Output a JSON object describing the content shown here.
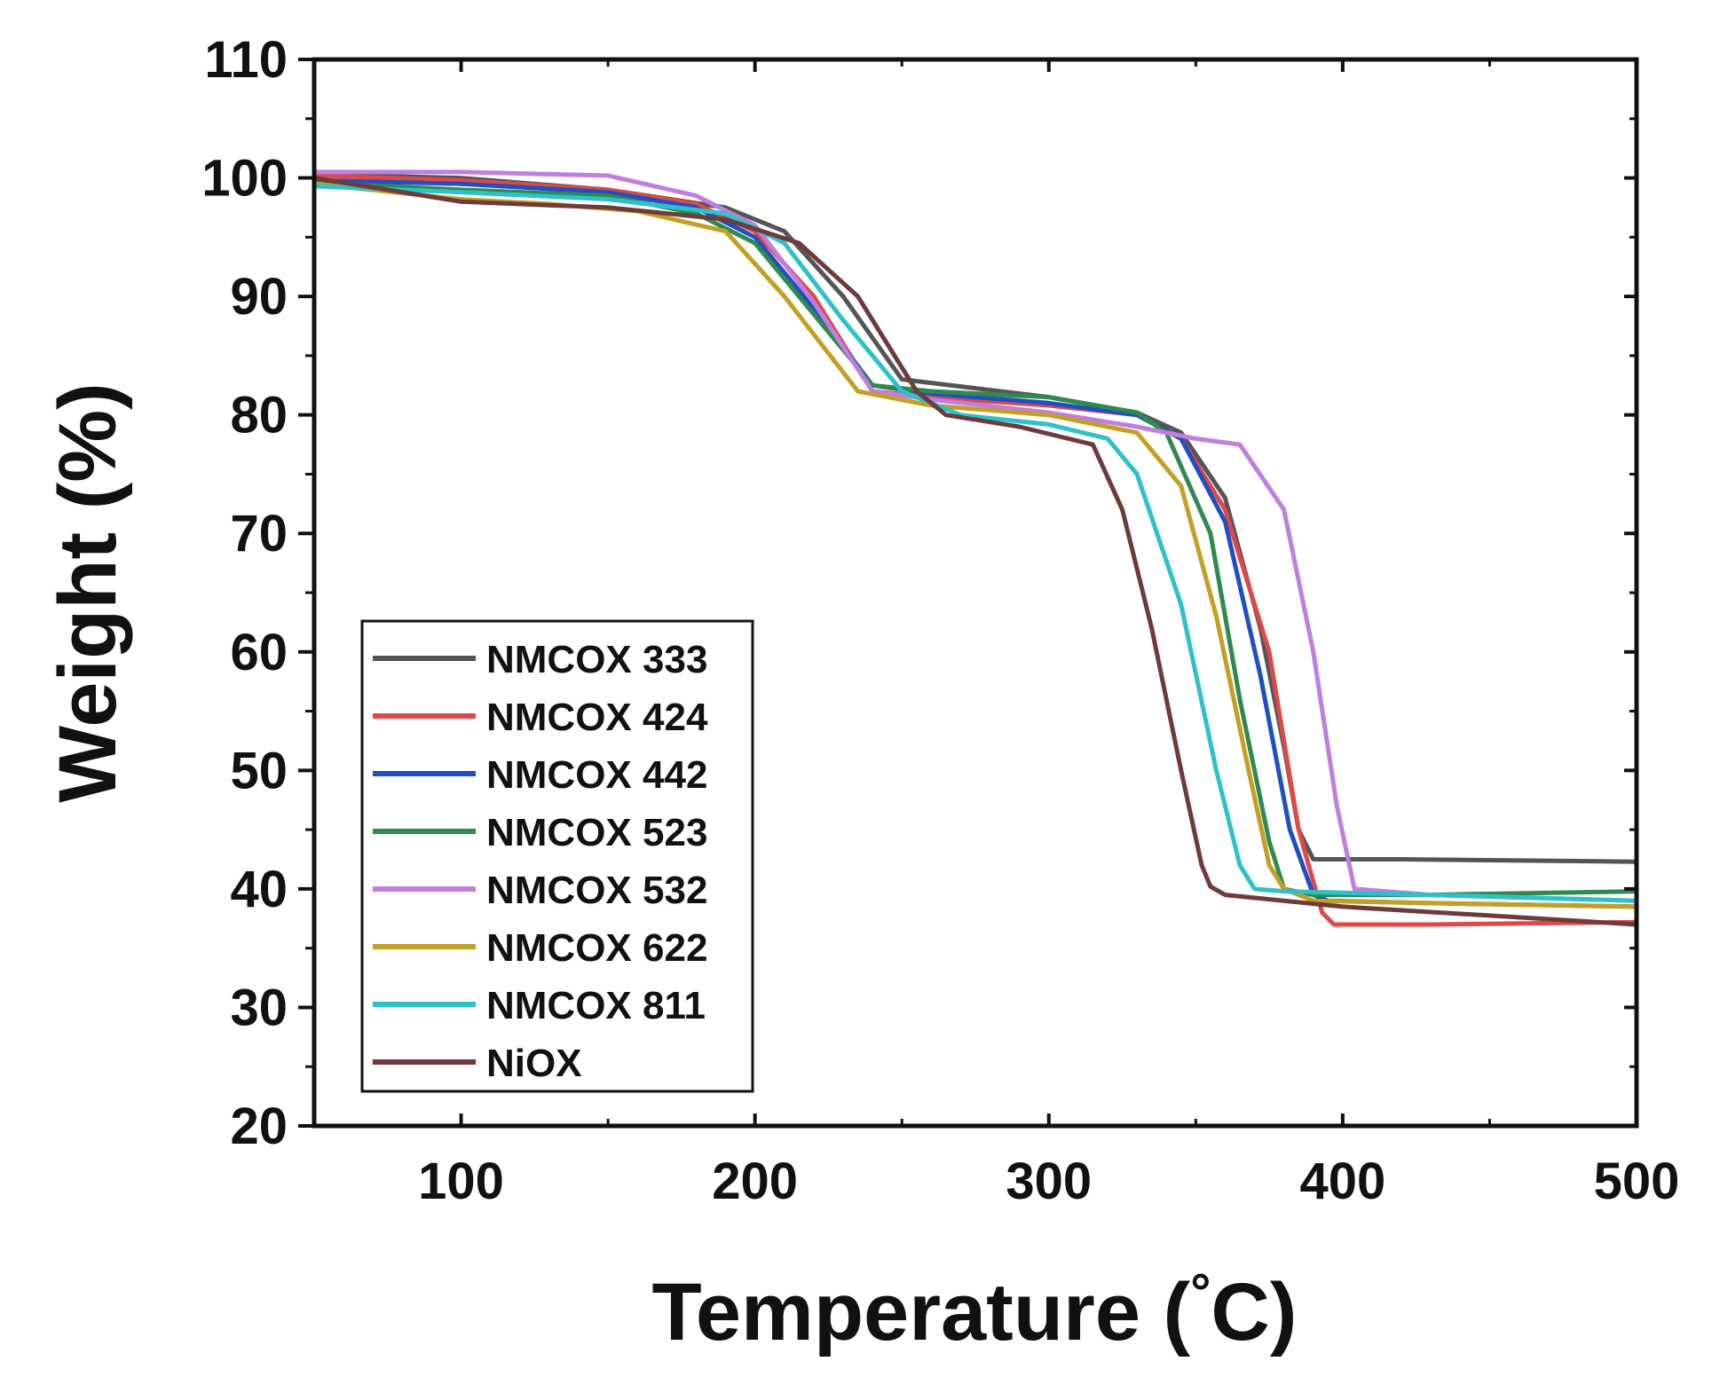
{
  "chart_data": {
    "type": "line",
    "title": "",
    "xlabel": "Temperature (°C)",
    "xlabel_main": "Temperature (",
    "xlabel_unit": "°",
    "xlabel_tail": "C)",
    "ylabel": "Weight (%)",
    "xlim": [
      50,
      500
    ],
    "ylim": [
      20,
      110
    ],
    "xticks": [
      100,
      200,
      300,
      400,
      500
    ],
    "xtick_labels": [
      "100",
      "200",
      "300",
      "400",
      "500"
    ],
    "yticks": [
      20,
      30,
      40,
      50,
      60,
      70,
      80,
      90,
      100,
      110
    ],
    "ytick_labels": [
      "20",
      "30",
      "40",
      "50",
      "60",
      "70",
      "80",
      "90",
      "100",
      "110"
    ],
    "grid": false,
    "legend_position": "bottom-left",
    "series": [
      {
        "name": "NMCOX 333",
        "color": "#555555",
        "x": [
          50,
          100,
          150,
          190,
          210,
          230,
          250,
          270,
          300,
          330,
          345,
          360,
          372,
          380,
          385,
          390,
          420,
          500
        ],
        "y": [
          100.3,
          100.0,
          99.0,
          97.5,
          95.5,
          90.0,
          83.0,
          82.4,
          81.5,
          80.2,
          78.5,
          73.0,
          62.0,
          52.0,
          45.0,
          42.5,
          42.5,
          42.3
        ]
      },
      {
        "name": "NMCOX 424",
        "color": "#e04848",
        "x": [
          50,
          100,
          150,
          180,
          200,
          220,
          240,
          260,
          300,
          330,
          345,
          360,
          375,
          385,
          393,
          397,
          430,
          500
        ],
        "y": [
          100.2,
          99.8,
          99.0,
          97.8,
          95.5,
          90.0,
          82.0,
          81.5,
          80.8,
          80.0,
          78.0,
          72.0,
          60.0,
          45.0,
          38.0,
          37.0,
          37.0,
          37.2
        ]
      },
      {
        "name": "NMCOX 442",
        "color": "#1f4fc4",
        "x": [
          50,
          100,
          150,
          180,
          200,
          220,
          240,
          260,
          300,
          330,
          345,
          360,
          372,
          382,
          390,
          395,
          430,
          500
        ],
        "y": [
          99.8,
          99.5,
          98.8,
          97.5,
          95.0,
          89.0,
          82.5,
          81.8,
          81.0,
          80.0,
          78.0,
          71.0,
          58.0,
          45.0,
          39.5,
          39.0,
          38.8,
          38.5
        ]
      },
      {
        "name": "NMCOX 523",
        "color": "#2e8a4e",
        "x": [
          50,
          100,
          150,
          180,
          200,
          220,
          240,
          260,
          300,
          330,
          340,
          355,
          365,
          375,
          380,
          390,
          430,
          500
        ],
        "y": [
          99.6,
          99.0,
          98.5,
          97.0,
          94.5,
          88.5,
          82.5,
          82.0,
          81.5,
          80.2,
          78.5,
          70.0,
          56.0,
          44.0,
          40.0,
          39.5,
          39.5,
          39.8
        ]
      },
      {
        "name": "NMCOX 532",
        "color": "#c07ee0",
        "x": [
          50,
          100,
          150,
          180,
          200,
          220,
          240,
          260,
          300,
          330,
          350,
          365,
          380,
          390,
          398,
          404,
          430,
          500
        ],
        "y": [
          100.5,
          100.5,
          100.2,
          98.5,
          96.0,
          89.5,
          82.0,
          81.3,
          80.2,
          79.0,
          78.0,
          77.5,
          72.0,
          60.0,
          47.0,
          40.0,
          39.5,
          39.0
        ]
      },
      {
        "name": "NMCOX 622",
        "color": "#c2a022",
        "x": [
          50,
          100,
          130,
          160,
          190,
          210,
          235,
          260,
          300,
          330,
          345,
          357,
          368,
          375,
          380,
          390,
          430,
          500
        ],
        "y": [
          99.5,
          98.2,
          97.8,
          97.2,
          95.5,
          90.0,
          82.0,
          80.8,
          80.0,
          78.5,
          74.0,
          63.0,
          50.0,
          42.0,
          40.0,
          39.0,
          38.8,
          38.5
        ]
      },
      {
        "name": "NMCOX 811",
        "color": "#2ec2c8",
        "x": [
          50,
          100,
          150,
          190,
          210,
          230,
          250,
          270,
          300,
          320,
          330,
          345,
          357,
          365,
          370,
          380,
          430,
          500
        ],
        "y": [
          99.3,
          98.8,
          98.2,
          97.0,
          94.5,
          88.0,
          82.0,
          80.0,
          79.2,
          78.0,
          75.0,
          64.0,
          50.0,
          42.0,
          40.0,
          39.8,
          39.5,
          39.0
        ]
      },
      {
        "name": "NiOX",
        "color": "#6e3a3a",
        "x": [
          50,
          100,
          150,
          190,
          215,
          235,
          255,
          265,
          290,
          315,
          325,
          335,
          345,
          352,
          355,
          360,
          400,
          500
        ],
        "y": [
          100.0,
          98.0,
          97.5,
          96.5,
          94.5,
          90.0,
          82.0,
          80.0,
          79.0,
          77.5,
          72.0,
          62.0,
          50.0,
          42.0,
          40.2,
          39.5,
          38.5,
          37.0
        ]
      }
    ]
  }
}
